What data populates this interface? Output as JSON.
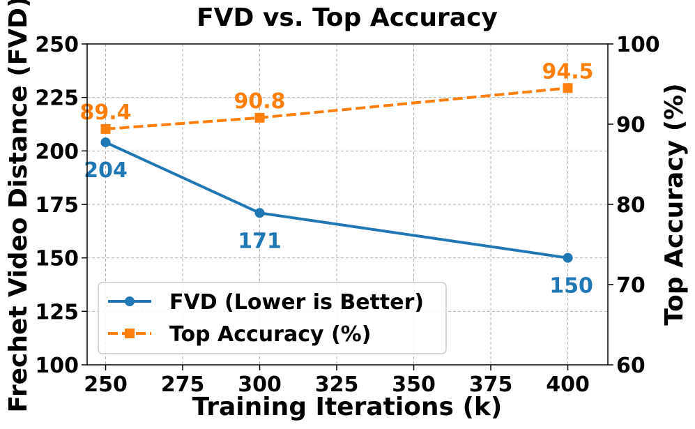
{
  "chart_data": {
    "type": "line",
    "title": "FVD vs. Top Accuracy",
    "xlabel": "Training Iterations (k)",
    "ylabel_left": "Frechet Video Distance (FVD)",
    "ylabel_right": "Top Accuracy (%)",
    "xlim": [
      244,
      413
    ],
    "ylim_left": [
      100,
      250
    ],
    "ylim_right": [
      60,
      100
    ],
    "x_ticks": [
      "250",
      "275",
      "300",
      "325",
      "350",
      "375",
      "400"
    ],
    "y_ticks_left": [
      "100",
      "125",
      "150",
      "175",
      "200",
      "225",
      "250"
    ],
    "y_ticks_right": [
      "60",
      "70",
      "80",
      "90",
      "100"
    ],
    "grid": true,
    "legend_position": "lower-left",
    "series": [
      {
        "name": "FVD (Lower is Better)",
        "axis": "left",
        "x": [
          250,
          300,
          400
        ],
        "values": [
          204,
          171,
          150
        ],
        "labels": [
          "204",
          "171",
          "150"
        ],
        "color": "#1f77b4",
        "marker": "circle",
        "linestyle": "solid"
      },
      {
        "name": "Top Accuracy (%)",
        "axis": "right",
        "x": [
          250,
          300,
          400
        ],
        "values": [
          89.4,
          90.8,
          94.5
        ],
        "labels": [
          "89.4",
          "90.8",
          "94.5"
        ],
        "color": "#ff7f0e",
        "marker": "square",
        "linestyle": "dashed"
      }
    ]
  }
}
